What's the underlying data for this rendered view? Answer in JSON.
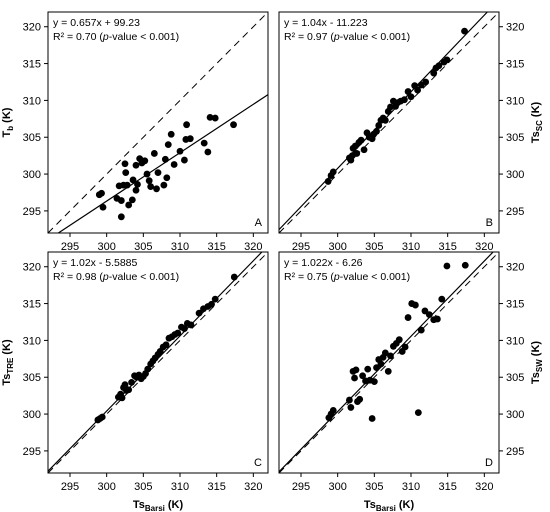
{
  "chart_data": [
    {
      "type": "scatter",
      "panel": "A",
      "xlim": [
        292,
        322
      ],
      "ylim": [
        292,
        322
      ],
      "xticks": [
        295,
        300,
        305,
        310,
        315,
        320
      ],
      "yticks": [
        295,
        300,
        305,
        310,
        315,
        320
      ],
      "xlabel": {
        "main": "",
        "sub": ""
      },
      "ylabel": {
        "main": "T",
        "sub": "b",
        "unit": "(K)"
      },
      "ylabel_side": "left",
      "equation": "y = 0.657x + 99.23",
      "r2_pre": "R² = 0.70 (",
      "r2_p": "p",
      "r2_post": "-value < 0.001)",
      "fit": {
        "slope": 0.657,
        "intercept": 99.23
      },
      "points": [
        [
          299.0,
          297.2
        ],
        [
          299.3,
          297.4
        ],
        [
          299.5,
          295.5
        ],
        [
          301.4,
          296.7
        ],
        [
          301.7,
          298.4
        ],
        [
          302.0,
          296.4
        ],
        [
          302.0,
          294.2
        ],
        [
          302.3,
          298.5
        ],
        [
          302.5,
          301.4
        ],
        [
          302.6,
          300.2
        ],
        [
          302.8,
          298.5
        ],
        [
          303.0,
          295.8
        ],
        [
          303.5,
          296.5
        ],
        [
          303.6,
          299.2
        ],
        [
          304.0,
          301.2
        ],
        [
          304.0,
          297.8
        ],
        [
          304.2,
          298.6
        ],
        [
          304.5,
          302.1
        ],
        [
          304.8,
          301.5
        ],
        [
          305.2,
          301.8
        ],
        [
          305.5,
          300.0
        ],
        [
          305.8,
          299.1
        ],
        [
          306.0,
          298.3
        ],
        [
          306.5,
          302.8
        ],
        [
          306.8,
          298.0
        ],
        [
          307.0,
          300.2
        ],
        [
          307.8,
          298.5
        ],
        [
          308.0,
          302.0
        ],
        [
          308.2,
          299.5
        ],
        [
          308.4,
          304.0
        ],
        [
          308.8,
          305.4
        ],
        [
          309.2,
          301.3
        ],
        [
          310.0,
          303.1
        ],
        [
          310.6,
          301.9
        ],
        [
          310.8,
          304.7
        ],
        [
          310.9,
          306.7
        ],
        [
          311.4,
          304.8
        ],
        [
          313.3,
          304.2
        ],
        [
          313.8,
          303.0
        ],
        [
          314.1,
          307.7
        ],
        [
          314.8,
          307.6
        ],
        [
          317.3,
          306.7
        ]
      ]
    },
    {
      "type": "scatter",
      "panel": "B",
      "xlim": [
        292,
        322
      ],
      "ylim": [
        292,
        322
      ],
      "xticks": [
        295,
        300,
        305,
        310,
        315,
        320
      ],
      "yticks": [
        295,
        300,
        305,
        310,
        315,
        320
      ],
      "xlabel": {
        "main": "",
        "sub": ""
      },
      "ylabel": {
        "main": "Ts",
        "sub": "SC",
        "unit": "(K)"
      },
      "ylabel_side": "right",
      "equation": "y = 1.04x - 11.223",
      "r2_pre": "R² = 0.97 (",
      "r2_p": "p",
      "r2_post": "-value < 0.001)",
      "fit": {
        "slope": 1.04,
        "intercept": -11.223
      },
      "points": [
        [
          298.7,
          299.0
        ],
        [
          299.1,
          299.8
        ],
        [
          299.4,
          300.3
        ],
        [
          301.6,
          302.2
        ],
        [
          301.8,
          301.9
        ],
        [
          302.0,
          302.5
        ],
        [
          302.1,
          303.5
        ],
        [
          302.4,
          303.8
        ],
        [
          302.6,
          302.8
        ],
        [
          302.9,
          304.3
        ],
        [
          303.2,
          304.6
        ],
        [
          303.6,
          303.3
        ],
        [
          304.0,
          305.6
        ],
        [
          304.3,
          305.0
        ],
        [
          304.7,
          304.8
        ],
        [
          304.9,
          305.4
        ],
        [
          305.3,
          305.8
        ],
        [
          305.6,
          306.6
        ],
        [
          305.9,
          307.3
        ],
        [
          306.2,
          307.6
        ],
        [
          306.5,
          307.3
        ],
        [
          306.9,
          308.5
        ],
        [
          307.2,
          309.1
        ],
        [
          307.6,
          309.9
        ],
        [
          307.9,
          309.2
        ],
        [
          308.2,
          309.7
        ],
        [
          308.6,
          309.9
        ],
        [
          309.1,
          310.1
        ],
        [
          309.6,
          311.2
        ],
        [
          310.0,
          310.5
        ],
        [
          310.5,
          312.0
        ],
        [
          310.9,
          311.4
        ],
        [
          311.4,
          312.1
        ],
        [
          312.0,
          312.5
        ],
        [
          313.1,
          313.7
        ],
        [
          313.4,
          314.4
        ],
        [
          313.8,
          314.7
        ],
        [
          314.5,
          315.2
        ],
        [
          314.9,
          315.5
        ],
        [
          317.3,
          319.4
        ]
      ]
    },
    {
      "type": "scatter",
      "panel": "C",
      "xlim": [
        292,
        322
      ],
      "ylim": [
        292,
        322
      ],
      "xticks": [
        295,
        300,
        305,
        310,
        315,
        320
      ],
      "yticks": [
        295,
        300,
        305,
        310,
        315,
        320
      ],
      "xlabel": {
        "main": "Ts",
        "sub": "Barsi",
        "unit": "(K)"
      },
      "ylabel": {
        "main": "Ts",
        "sub": "TRE",
        "unit": "(K)"
      },
      "ylabel_side": "left",
      "equation": "y = 1.02x - 5.5885",
      "r2_pre": "R² = 0.98 (",
      "r2_p": "p",
      "r2_post": "-value < 0.001)",
      "fit": {
        "slope": 1.02,
        "intercept": -5.5885
      },
      "points": [
        [
          298.8,
          299.2
        ],
        [
          299.1,
          299.4
        ],
        [
          299.4,
          299.6
        ],
        [
          301.6,
          302.3
        ],
        [
          301.9,
          302.7
        ],
        [
          302.1,
          302.2
        ],
        [
          302.3,
          303.6
        ],
        [
          302.5,
          304.0
        ],
        [
          302.7,
          303.2
        ],
        [
          303.0,
          303.3
        ],
        [
          303.4,
          304.3
        ],
        [
          303.8,
          305.2
        ],
        [
          304.1,
          305.0
        ],
        [
          304.4,
          305.3
        ],
        [
          304.7,
          304.8
        ],
        [
          305.0,
          305.1
        ],
        [
          305.3,
          305.5
        ],
        [
          305.6,
          306.1
        ],
        [
          306.0,
          306.8
        ],
        [
          306.3,
          307.2
        ],
        [
          306.6,
          307.6
        ],
        [
          307.0,
          308.1
        ],
        [
          307.3,
          308.5
        ],
        [
          307.7,
          309.1
        ],
        [
          308.1,
          309.4
        ],
        [
          308.5,
          310.3
        ],
        [
          308.9,
          310.5
        ],
        [
          309.3,
          310.8
        ],
        [
          309.7,
          311.0
        ],
        [
          310.2,
          311.8
        ],
        [
          310.6,
          311.6
        ],
        [
          311.0,
          312.3
        ],
        [
          311.5,
          312.1
        ],
        [
          312.6,
          313.7
        ],
        [
          313.2,
          314.3
        ],
        [
          313.8,
          314.6
        ],
        [
          314.3,
          314.9
        ],
        [
          314.8,
          315.6
        ],
        [
          317.4,
          318.6
        ]
      ]
    },
    {
      "type": "scatter",
      "panel": "D",
      "xlim": [
        292,
        322
      ],
      "ylim": [
        292,
        322
      ],
      "xticks": [
        295,
        300,
        305,
        310,
        315,
        320
      ],
      "yticks": [
        295,
        300,
        305,
        310,
        315,
        320
      ],
      "xlabel": {
        "main": "Ts",
        "sub": "Barsi",
        "unit": "(K)"
      },
      "ylabel": {
        "main": "Ts",
        "sub": "SW",
        "unit": "(K)"
      },
      "ylabel_side": "right",
      "equation": "y = 1.022x - 6.26",
      "r2_pre": "R² = 0.75 (",
      "r2_p": "p",
      "r2_post": "-value < 0.001)",
      "fit": {
        "slope": 1.022,
        "intercept": -6.26
      },
      "points": [
        [
          298.8,
          299.5
        ],
        [
          299.1,
          300.0
        ],
        [
          299.4,
          300.5
        ],
        [
          301.6,
          301.9
        ],
        [
          301.8,
          300.9
        ],
        [
          302.1,
          305.8
        ],
        [
          302.3,
          304.9
        ],
        [
          302.5,
          306.0
        ],
        [
          302.7,
          301.7
        ],
        [
          303.0,
          302.0
        ],
        [
          303.4,
          305.2
        ],
        [
          303.8,
          304.5
        ],
        [
          304.1,
          306.1
        ],
        [
          304.4,
          304.6
        ],
        [
          304.7,
          299.4
        ],
        [
          305.0,
          304.4
        ],
        [
          305.3,
          306.3
        ],
        [
          305.6,
          307.4
        ],
        [
          305.9,
          306.8
        ],
        [
          306.2,
          307.7
        ],
        [
          306.5,
          308.3
        ],
        [
          306.9,
          305.8
        ],
        [
          307.2,
          307.9
        ],
        [
          307.6,
          309.2
        ],
        [
          308.0,
          309.6
        ],
        [
          308.4,
          310.1
        ],
        [
          308.8,
          308.5
        ],
        [
          309.2,
          309.1
        ],
        [
          309.6,
          313.1
        ],
        [
          310.1,
          315.0
        ],
        [
          310.6,
          314.8
        ],
        [
          311.0,
          300.2
        ],
        [
          311.4,
          311.4
        ],
        [
          311.9,
          314.0
        ],
        [
          312.5,
          313.5
        ],
        [
          313.1,
          312.8
        ],
        [
          313.6,
          312.9
        ],
        [
          314.2,
          315.6
        ],
        [
          314.9,
          320.1
        ],
        [
          317.4,
          320.2
        ]
      ]
    }
  ]
}
